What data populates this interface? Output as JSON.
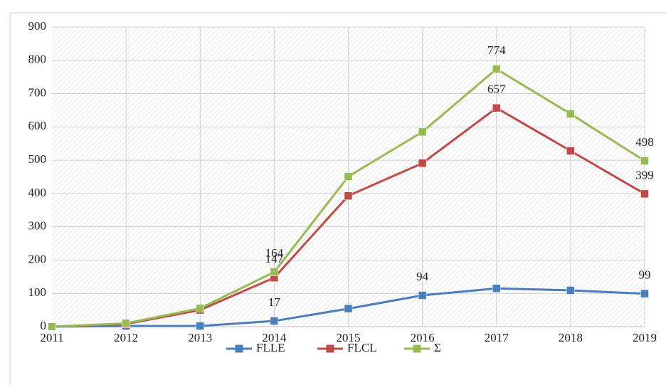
{
  "chart_data": {
    "type": "line",
    "categories": [
      "2011",
      "2012",
      "2013",
      "2014",
      "2015",
      "2016",
      "2017",
      "2018",
      "2019"
    ],
    "series": [
      {
        "name": "FLLE",
        "color": "#4a7ebb",
        "values": [
          0,
          2,
          2,
          17,
          54,
          94,
          115,
          109,
          99
        ],
        "value_labels": [
          null,
          null,
          null,
          "17",
          null,
          "94",
          null,
          null,
          "99"
        ]
      },
      {
        "name": "FLCL",
        "color": "#be4b48",
        "values": [
          0,
          8,
          50,
          147,
          393,
          491,
          657,
          528,
          399
        ],
        "value_labels": [
          null,
          null,
          null,
          "147",
          null,
          null,
          "657",
          null,
          "399"
        ]
      },
      {
        "name": "Σ",
        "color": "#98b954",
        "values": [
          0,
          10,
          55,
          164,
          451,
          585,
          774,
          639,
          498
        ],
        "value_labels": [
          null,
          null,
          null,
          "164",
          null,
          null,
          "774",
          null,
          "498"
        ]
      }
    ],
    "ylim": [
      0,
      900
    ],
    "yticks": [
      0,
      100,
      200,
      300,
      400,
      500,
      600,
      700,
      800,
      900
    ],
    "grid": true,
    "legend": "bottom"
  }
}
